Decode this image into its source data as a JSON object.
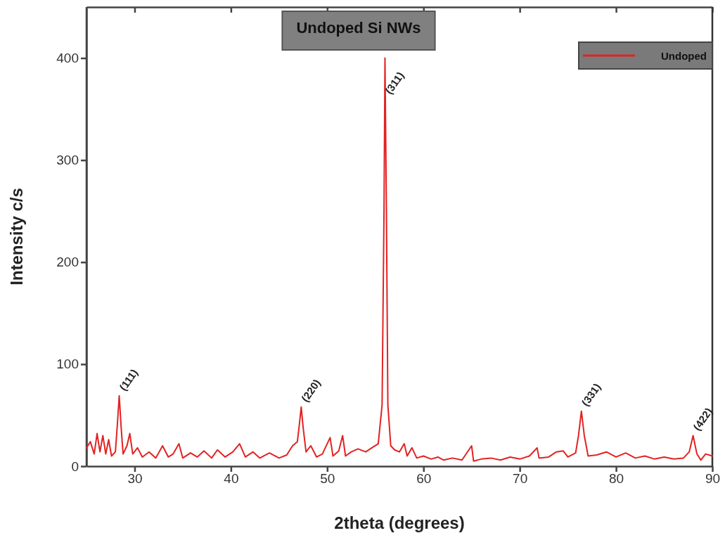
{
  "chart_data": {
    "type": "line",
    "title": "Undoped Si NWs",
    "xlabel": "2theta (degrees)",
    "ylabel": "Intensity c/s",
    "xlim": [
      25,
      90
    ],
    "xticks": [
      30,
      40,
      50,
      60,
      70,
      80,
      90
    ],
    "ylim": [
      0,
      450
    ],
    "yticks": [
      0,
      100,
      200,
      300,
      400
    ],
    "legend": "top right",
    "grid": false,
    "x": [
      25,
      25.4,
      25.8,
      26.1,
      26.4,
      26.7,
      27.0,
      27.3,
      27.6,
      28.0,
      28.2,
      28.4,
      28.6,
      28.8,
      29.2,
      29.5,
      29.8,
      30.3,
      30.8,
      31.5,
      32.2,
      32.9,
      33.5,
      34.0,
      34.6,
      35.0,
      35.8,
      36.5,
      37.2,
      38.0,
      38.6,
      39.4,
      40.2,
      40.9,
      41.5,
      42.3,
      43.0,
      44.0,
      45.0,
      45.8,
      46.4,
      46.9,
      47.1,
      47.3,
      47.5,
      47.8,
      48.3,
      48.9,
      49.5,
      50.3,
      50.6,
      51.2,
      51.6,
      51.9,
      52.5,
      53.2,
      54.0,
      54.8,
      55.3,
      55.7,
      55.9,
      56.0,
      56.15,
      56.3,
      56.6,
      57.0,
      57.5,
      58.0,
      58.3,
      58.8,
      59.3,
      60.0,
      60.8,
      61.5,
      62.1,
      63.0,
      64.0,
      65.0,
      65.2,
      66.0,
      67.0,
      68.0,
      69.0,
      70.0,
      71.0,
      71.8,
      72.0,
      73.0,
      73.8,
      74.5,
      75.0,
      75.8,
      76.1,
      76.4,
      76.7,
      77.1,
      78.0,
      79.0,
      80.0,
      81.0,
      82.0,
      83.0,
      84.0,
      85.0,
      86.0,
      87.0,
      87.6,
      88.0,
      88.4,
      88.8,
      89.3,
      90.0
    ],
    "series": [
      {
        "name": "Undoped",
        "color": "#e32222",
        "values": [
          18,
          24,
          12,
          32,
          14,
          30,
          12,
          26,
          10,
          14,
          40,
          69,
          38,
          12,
          20,
          32,
          12,
          18,
          9,
          14,
          8,
          20,
          9,
          12,
          22,
          8,
          13,
          9,
          15,
          8,
          16,
          9,
          14,
          22,
          9,
          14,
          8,
          13,
          8,
          11,
          20,
          24,
          40,
          58,
          38,
          14,
          20,
          9,
          12,
          28,
          10,
          15,
          30,
          10,
          14,
          17,
          14,
          19,
          22,
          60,
          250,
          400,
          250,
          60,
          20,
          16,
          14,
          22,
          10,
          18,
          8,
          10,
          7,
          9,
          6,
          8,
          6,
          20,
          5,
          7,
          8,
          6,
          9,
          7,
          10,
          18,
          8,
          9,
          14,
          15,
          9,
          13,
          30,
          54,
          30,
          10,
          11,
          14,
          9,
          13,
          8,
          10,
          7,
          9,
          7,
          8,
          14,
          30,
          12,
          6,
          12,
          10
        ]
      }
    ],
    "annotations": [
      {
        "text": "(111)",
        "x": 28.4,
        "y": 69
      },
      {
        "text": "(220)",
        "x": 47.3,
        "y": 58
      },
      {
        "text": "(311)",
        "x": 56.0,
        "y": 400
      },
      {
        "text": "(331)",
        "x": 76.4,
        "y": 54
      },
      {
        "text": "(422)",
        "x": 88.0,
        "y": 30
      }
    ]
  }
}
